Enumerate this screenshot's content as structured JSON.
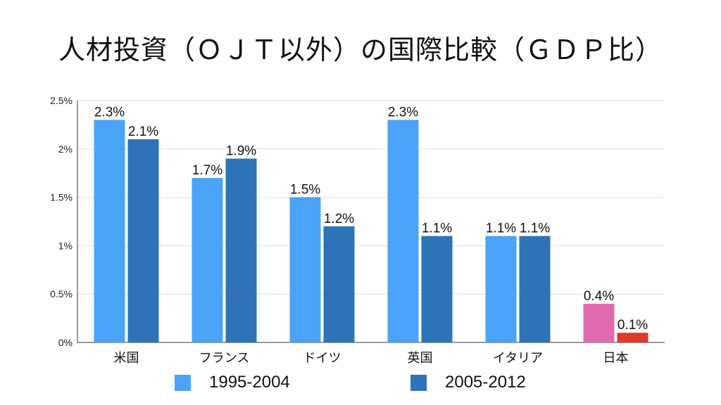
{
  "chart_data": {
    "type": "bar",
    "title": "人材投資（ＯＪＴ以外）の国際比較（ＧＤＰ比）",
    "categories": [
      "米国",
      "フランス",
      "ドイツ",
      "英国",
      "イタリア",
      "日本"
    ],
    "series": [
      {
        "name": "1995-2004",
        "values": [
          2.3,
          1.7,
          1.5,
          2.3,
          1.1,
          0.4
        ],
        "labels": [
          "2.3%",
          "1.7%",
          "1.5%",
          "2.3%",
          "1.1%",
          "0.4%"
        ]
      },
      {
        "name": "2005-2012",
        "values": [
          2.1,
          1.9,
          1.2,
          1.1,
          1.1,
          0.1
        ],
        "labels": [
          "2.1%",
          "1.9%",
          "1.2%",
          "1.1%",
          "1.1%",
          "0.1%"
        ]
      }
    ],
    "yticks": [
      0,
      0.5,
      1,
      1.5,
      2,
      2.5
    ],
    "ytick_labels": [
      "0%",
      "0.5%",
      "1%",
      "1.5%",
      "2%",
      "2.5%"
    ],
    "ylim": [
      0,
      2.5
    ],
    "xlabel": "",
    "ylabel": "",
    "grid": true,
    "legend_position": "bottom",
    "colors": {
      "series": [
        "#4BA3F7",
        "#2E73B8"
      ],
      "highlight_category": "日本",
      "highlight": [
        "#E06AAE",
        "#E03A2A"
      ],
      "grid": "#DDDDDD",
      "axis": "#333333"
    }
  }
}
